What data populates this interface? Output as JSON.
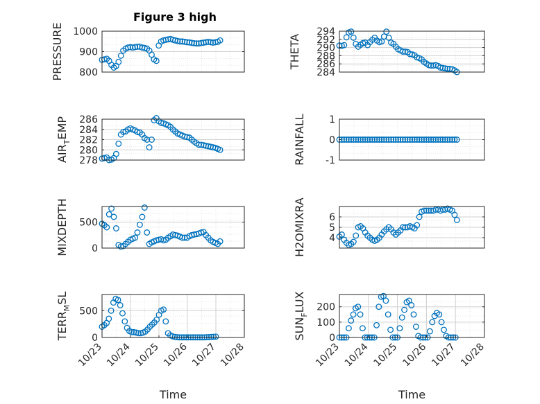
{
  "figure": {
    "title": "Figure 3 high",
    "marker_color": "#0072BD"
  },
  "chart_data": [
    {
      "type": "scatter",
      "id": "pressure",
      "ylabel": "PRESSURE",
      "ylim": [
        800,
        1000
      ],
      "yticks": [
        800,
        900,
        1000
      ],
      "xlim": [
        0,
        1
      ],
      "xticks": [],
      "xticklabels": [],
      "xlabel": "",
      "grid": true,
      "series": [
        {
          "x": [
            0.0,
            0.02,
            0.04,
            0.06,
            0.08,
            0.1,
            0.12,
            0.14,
            0.16,
            0.18,
            0.2,
            0.22,
            0.24,
            0.26,
            0.28,
            0.3,
            0.32,
            0.34,
            0.36,
            0.38,
            0.4,
            0.42,
            0.44,
            0.46,
            0.48,
            0.5,
            0.52,
            0.54,
            0.56,
            0.58,
            0.6,
            0.62,
            0.64,
            0.66,
            0.68,
            0.7,
            0.72,
            0.74,
            0.76,
            0.78,
            0.8,
            0.82,
            0.84,
            0.86,
            0.88,
            0.9,
            0.92,
            0.94,
            0.96,
            0.98,
            1.0
          ],
          "y": [
            860,
            862,
            865,
            855,
            835,
            822,
            830,
            850,
            880,
            905,
            915,
            920,
            922,
            920,
            922,
            924,
            924,
            920,
            918,
            915,
            905,
            885,
            862,
            855,
            930,
            950,
            955,
            958,
            960,
            962,
            958,
            955,
            952,
            950,
            950,
            948,
            946,
            945,
            943,
            941,
            940,
            940,
            942,
            944,
            946,
            948,
            946,
            944,
            946,
            948,
            955
          ]
        }
      ]
    },
    {
      "type": "scatter",
      "id": "theta",
      "ylabel": "THETA",
      "ylim": [
        284,
        294
      ],
      "yticks": [
        284,
        286,
        288,
        290,
        292,
        294
      ],
      "xlim": [
        0,
        1
      ],
      "xticks": [],
      "xticklabels": [],
      "xlabel": "",
      "grid": true,
      "series": [
        {
          "x": [
            0.0,
            0.02,
            0.04,
            0.06,
            0.08,
            0.1,
            0.12,
            0.14,
            0.16,
            0.18,
            0.2,
            0.22,
            0.24,
            0.26,
            0.28,
            0.3,
            0.32,
            0.34,
            0.36,
            0.38,
            0.4,
            0.42,
            0.44,
            0.46,
            0.48,
            0.5,
            0.52,
            0.54,
            0.56,
            0.58,
            0.6,
            0.62,
            0.64,
            0.66,
            0.68,
            0.7,
            0.72,
            0.74,
            0.76,
            0.78,
            0.8,
            0.82,
            0.84,
            0.86,
            0.88,
            0.9,
            0.92,
            0.94,
            0.96,
            0.98,
            1.0
          ],
          "y": [
            290.5,
            290.4,
            290.6,
            292.5,
            293.7,
            293.9,
            292.4,
            290.9,
            290.2,
            290.7,
            291.1,
            291.2,
            290.6,
            291.3,
            291.9,
            292.4,
            291.7,
            291.3,
            291.5,
            292.7,
            293.9,
            292.4,
            291.2,
            290.9,
            290.2,
            289.6,
            289.3,
            289.0,
            289.0,
            288.9,
            288.4,
            288.3,
            288.1,
            287.6,
            287.4,
            287.1,
            286.5,
            286.1,
            285.7,
            285.6,
            285.6,
            285.7,
            285.5,
            285.1,
            285.0,
            284.9,
            284.8,
            284.8,
            284.7,
            284.4,
            284.0
          ]
        }
      ]
    },
    {
      "type": "scatter",
      "id": "air_temp",
      "ylabel": "AIR_TEMP",
      "ylim": [
        278,
        286
      ],
      "yticks": [
        278,
        280,
        282,
        284,
        286
      ],
      "xlim": [
        0,
        1
      ],
      "xticks": [],
      "xticklabels": [],
      "xlabel": "",
      "grid": true,
      "series": [
        {
          "x": [
            0.0,
            0.02,
            0.04,
            0.06,
            0.08,
            0.1,
            0.12,
            0.14,
            0.16,
            0.18,
            0.2,
            0.22,
            0.24,
            0.26,
            0.28,
            0.3,
            0.32,
            0.34,
            0.36,
            0.38,
            0.4,
            0.42,
            0.44,
            0.46,
            0.48,
            0.5,
            0.52,
            0.54,
            0.56,
            0.58,
            0.6,
            0.62,
            0.64,
            0.66,
            0.68,
            0.7,
            0.72,
            0.74,
            0.76,
            0.78,
            0.8,
            0.82,
            0.84,
            0.86,
            0.88,
            0.9,
            0.92,
            0.94,
            0.96,
            0.98,
            1.0
          ],
          "y": [
            278.3,
            278.4,
            278.5,
            278.0,
            278.1,
            278.4,
            279.2,
            281.2,
            283.0,
            283.5,
            283.6,
            284.0,
            284.2,
            284.0,
            283.8,
            283.5,
            283.4,
            283.0,
            282.3,
            282.0,
            280.5,
            282.0,
            285.8,
            286.2,
            285.6,
            285.3,
            285.2,
            285.0,
            284.8,
            284.5,
            284.0,
            283.6,
            283.2,
            283.0,
            282.8,
            282.6,
            282.5,
            282.4,
            282.0,
            281.6,
            281.3,
            281.0,
            281.0,
            280.9,
            280.8,
            280.7,
            280.6,
            280.5,
            280.4,
            280.2,
            280.0
          ]
        }
      ]
    },
    {
      "type": "scatter",
      "id": "rainfall",
      "ylabel": "RAINFALL",
      "ylim": [
        -1,
        1
      ],
      "yticks": [
        -1,
        0,
        1
      ],
      "xlim": [
        0,
        1
      ],
      "xticks": [],
      "xticklabels": [],
      "xlabel": "",
      "grid": true,
      "series": [
        {
          "x": [
            0.0,
            0.02,
            0.04,
            0.06,
            0.08,
            0.1,
            0.12,
            0.14,
            0.16,
            0.18,
            0.2,
            0.22,
            0.24,
            0.26,
            0.28,
            0.3,
            0.32,
            0.34,
            0.36,
            0.38,
            0.4,
            0.42,
            0.44,
            0.46,
            0.48,
            0.5,
            0.52,
            0.54,
            0.56,
            0.58,
            0.6,
            0.62,
            0.64,
            0.66,
            0.68,
            0.7,
            0.72,
            0.74,
            0.76,
            0.78,
            0.8,
            0.82,
            0.84,
            0.86,
            0.88,
            0.9,
            0.92,
            0.94,
            0.96,
            0.98,
            1.0
          ],
          "y": [
            0,
            0,
            0,
            0,
            0,
            0,
            0,
            0,
            0,
            0,
            0,
            0,
            0,
            0,
            0,
            0,
            0,
            0,
            0,
            0,
            0,
            0,
            0,
            0,
            0,
            0,
            0,
            0,
            0,
            0,
            0,
            0,
            0,
            0,
            0,
            0,
            0,
            0,
            0,
            0,
            0,
            0,
            0,
            0,
            0,
            0,
            0,
            0,
            0,
            0,
            0
          ]
        }
      ]
    },
    {
      "type": "scatter",
      "id": "mixdepth",
      "ylabel": "MIXDEPTH",
      "ylim": [
        0,
        800
      ],
      "yticks": [
        0,
        500
      ],
      "xlim": [
        0,
        1
      ],
      "xticks": [],
      "xticklabels": [],
      "xlabel": "",
      "grid": true,
      "series": [
        {
          "x": [
            0.0,
            0.02,
            0.04,
            0.06,
            0.08,
            0.1,
            0.12,
            0.14,
            0.16,
            0.18,
            0.2,
            0.22,
            0.24,
            0.26,
            0.28,
            0.3,
            0.32,
            0.34,
            0.36,
            0.38,
            0.4,
            0.42,
            0.44,
            0.46,
            0.48,
            0.5,
            0.52,
            0.54,
            0.56,
            0.58,
            0.6,
            0.62,
            0.64,
            0.66,
            0.68,
            0.7,
            0.72,
            0.74,
            0.76,
            0.78,
            0.8,
            0.82,
            0.84,
            0.86,
            0.88,
            0.9,
            0.92,
            0.94,
            0.96,
            0.98,
            1.0
          ],
          "y": [
            470,
            440,
            400,
            650,
            760,
            600,
            380,
            60,
            30,
            40,
            80,
            120,
            160,
            180,
            200,
            300,
            450,
            600,
            780,
            300,
            80,
            110,
            130,
            150,
            160,
            170,
            150,
            160,
            200,
            230,
            260,
            250,
            240,
            220,
            200,
            200,
            200,
            230,
            250,
            260,
            270,
            280,
            300,
            310,
            250,
            200,
            150,
            120,
            100,
            80,
            130
          ]
        }
      ]
    },
    {
      "type": "scatter",
      "id": "h2omixra",
      "ylabel": "H2OMIXRA",
      "ylim": [
        3,
        7
      ],
      "yticks": [
        4,
        5,
        6
      ],
      "xlim": [
        0,
        1
      ],
      "xticks": [],
      "xticklabels": [],
      "xlabel": "",
      "grid": true,
      "series": [
        {
          "x": [
            0.0,
            0.02,
            0.04,
            0.06,
            0.08,
            0.1,
            0.12,
            0.14,
            0.16,
            0.18,
            0.2,
            0.22,
            0.24,
            0.26,
            0.28,
            0.3,
            0.32,
            0.34,
            0.36,
            0.38,
            0.4,
            0.42,
            0.44,
            0.46,
            0.48,
            0.5,
            0.52,
            0.54,
            0.56,
            0.58,
            0.6,
            0.62,
            0.64,
            0.66,
            0.68,
            0.7,
            0.72,
            0.74,
            0.76,
            0.78,
            0.8,
            0.82,
            0.84,
            0.86,
            0.88,
            0.9,
            0.92,
            0.94,
            0.96,
            0.98,
            1.0
          ],
          "y": [
            4.1,
            4.3,
            3.8,
            3.5,
            3.3,
            3.4,
            3.6,
            4.2,
            5.0,
            5.1,
            4.9,
            4.5,
            4.2,
            4.0,
            3.8,
            3.7,
            3.8,
            4.0,
            4.3,
            4.6,
            4.8,
            5.0,
            4.8,
            4.5,
            4.3,
            4.5,
            4.7,
            5.0,
            5.0,
            5.0,
            5.1,
            5.0,
            4.9,
            5.2,
            6.0,
            6.5,
            6.6,
            6.6,
            6.6,
            6.6,
            6.6,
            6.7,
            6.7,
            6.6,
            6.7,
            6.7,
            6.8,
            6.7,
            6.6,
            6.2,
            5.7
          ]
        }
      ]
    },
    {
      "type": "scatter",
      "id": "terr_msl",
      "ylabel": "TERR_MSL",
      "ylim": [
        0,
        800
      ],
      "yticks": [
        0,
        500
      ],
      "xlim": [
        0,
        5
      ],
      "xticks": [
        0,
        1,
        2,
        3,
        4,
        5
      ],
      "xticklabels": [
        "10/23",
        "10/24",
        "10/25",
        "10/26",
        "10/27",
        "10/28"
      ],
      "xlabel": "Time",
      "grid": true,
      "series": [
        {
          "x": [
            0.0,
            0.08,
            0.16,
            0.24,
            0.32,
            0.4,
            0.48,
            0.56,
            0.64,
            0.72,
            0.8,
            0.88,
            0.96,
            1.04,
            1.12,
            1.2,
            1.28,
            1.36,
            1.44,
            1.52,
            1.6,
            1.68,
            1.76,
            1.84,
            1.92,
            2.0,
            2.08,
            2.16,
            2.24,
            2.32,
            2.4,
            2.48,
            2.56,
            2.64,
            2.72,
            2.8,
            2.88,
            2.96,
            3.04,
            3.12,
            3.2,
            3.28,
            3.36,
            3.44,
            3.52,
            3.6,
            3.68,
            3.76,
            3.84,
            3.92,
            4.0
          ],
          "y": [
            200,
            230,
            270,
            350,
            500,
            650,
            720,
            700,
            600,
            450,
            300,
            180,
            120,
            100,
            100,
            90,
            80,
            80,
            90,
            110,
            150,
            200,
            240,
            280,
            330,
            420,
            500,
            520,
            300,
            80,
            40,
            20,
            10,
            5,
            3,
            2,
            2,
            2,
            2,
            2,
            2,
            2,
            2,
            2,
            3,
            3,
            5,
            8,
            10,
            12,
            15
          ]
        }
      ]
    },
    {
      "type": "scatter",
      "id": "sun_flux",
      "ylabel": "SUN_FLUX",
      "ylim": [
        0,
        280
      ],
      "yticks": [
        0,
        100,
        200
      ],
      "xlim": [
        0,
        5
      ],
      "xticks": [
        0,
        1,
        2,
        3,
        4,
        5
      ],
      "xticklabels": [
        "10/23",
        "10/24",
        "10/25",
        "10/26",
        "10/27",
        "10/28"
      ],
      "xlabel": "Time",
      "grid": true,
      "series": [
        {
          "x": [
            0.0,
            0.08,
            0.16,
            0.24,
            0.32,
            0.4,
            0.48,
            0.56,
            0.64,
            0.72,
            0.8,
            0.88,
            0.96,
            1.04,
            1.12,
            1.2,
            1.28,
            1.36,
            1.44,
            1.52,
            1.6,
            1.68,
            1.76,
            1.84,
            1.92,
            2.0,
            2.08,
            2.16,
            2.24,
            2.32,
            2.4,
            2.48,
            2.56,
            2.64,
            2.72,
            2.8,
            2.88,
            2.96,
            3.04,
            3.12,
            3.2,
            3.28,
            3.36,
            3.44,
            3.52,
            3.6,
            3.68,
            3.76,
            3.84,
            3.92,
            4.0
          ],
          "y": [
            0,
            0,
            0,
            0,
            60,
            110,
            150,
            190,
            200,
            150,
            60,
            0,
            0,
            0,
            0,
            0,
            80,
            200,
            265,
            270,
            240,
            150,
            50,
            0,
            0,
            0,
            60,
            130,
            180,
            230,
            240,
            210,
            150,
            70,
            10,
            0,
            0,
            0,
            0,
            40,
            100,
            140,
            160,
            150,
            100,
            50,
            10,
            0,
            0,
            0,
            0
          ]
        }
      ]
    }
  ]
}
